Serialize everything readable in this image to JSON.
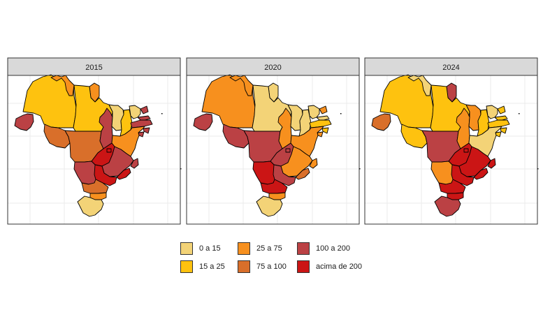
{
  "panels": [
    {
      "year": "2015",
      "classes": {
        "AM": 1,
        "RR": 2,
        "AP": 2,
        "PA": 1,
        "AC": 4,
        "RO": 3,
        "MT": 3,
        "TO": 4,
        "MA": 0,
        "PI": 1,
        "CE": 0,
        "RN": 4,
        "PB": 4,
        "PE": 4,
        "AL": 4,
        "SE": 4,
        "BA": 2,
        "GO": 5,
        "DF": 5,
        "MG": 4,
        "ES": 4,
        "MS": 4,
        "SP": 5,
        "RJ": 5,
        "PR": 3,
        "SC": 2,
        "RS": 0
      }
    },
    {
      "year": "2020",
      "classes": {
        "AM": 2,
        "RR": 2,
        "AP": 0,
        "PA": 0,
        "AC": 4,
        "RO": 4,
        "MT": 4,
        "TO": 2,
        "MA": 0,
        "PI": 0,
        "CE": 0,
        "RN": 2,
        "PB": 0,
        "PE": 1,
        "AL": 1,
        "SE": 2,
        "BA": 2,
        "GO": 4,
        "DF": 4,
        "MG": 2,
        "ES": 2,
        "MS": 5,
        "SP": 4,
        "RJ": 3,
        "PR": 5,
        "SC": 2,
        "RS": 0
      }
    },
    {
      "year": "2024",
      "classes": {
        "AM": 1,
        "RR": 0,
        "AP": 4,
        "PA": 1,
        "AC": 3,
        "RO": 1,
        "MT": 4,
        "TO": 2,
        "MA": 2,
        "PI": 1,
        "CE": 0,
        "RN": 1,
        "PB": 1,
        "PE": 1,
        "AL": 1,
        "SE": 1,
        "BA": 0,
        "GO": 5,
        "DF": 5,
        "MG": 5,
        "ES": 5,
        "MS": 2,
        "SP": 5,
        "RJ": 5,
        "PR": 5,
        "SC": 5,
        "RS": 4
      }
    }
  ],
  "legend": [
    {
      "label": "0 a 15",
      "color": "#f3d377"
    },
    {
      "label": "15 a 25",
      "color": "#fec20f"
    },
    {
      "label": "25 a 75",
      "color": "#f7901e"
    },
    {
      "label": "75 a 100",
      "color": "#d96f2a"
    },
    {
      "label": "100 a 200",
      "color": "#bb4144"
    },
    {
      "label": "acima de 200",
      "color": "#cb1515"
    }
  ]
}
